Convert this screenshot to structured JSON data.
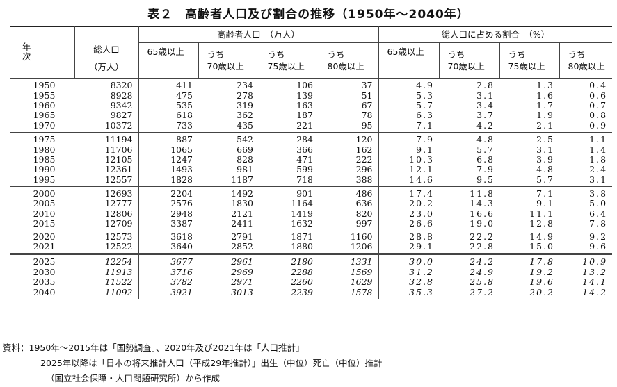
{
  "title": "表２　高齢者人口及び割合の推移（1950年～2040年）",
  "header": {
    "year": "年　次",
    "total_line1": "総人口",
    "total_line2": "（万人）",
    "group_pop": "高齢者人口　（万人）",
    "group_ratio": "総人口に占める割合　（%）",
    "pop_cols": [
      {
        "l1": "65歳以上",
        "l2": ""
      },
      {
        "l1": "うち",
        "l2": "70歳以上"
      },
      {
        "l1": "うち",
        "l2": "75歳以上"
      },
      {
        "l1": "うち",
        "l2": "80歳以上"
      }
    ],
    "ratio_cols": [
      {
        "l1": "65歳以上",
        "l2": ""
      },
      {
        "l1": "うち",
        "l2": "70歳以上"
      },
      {
        "l1": "うち",
        "l2": "75歳以上"
      },
      {
        "l1": "うち",
        "l2": "80歳以上"
      }
    ]
  },
  "blocks": [
    {
      "projected": false,
      "rows": [
        {
          "year": "1950",
          "total": "8320",
          "p65": "411",
          "p70": "234",
          "p75": "106",
          "p80": "37",
          "r65": "4.9",
          "r70": "2.8",
          "r75": "1.3",
          "r80": "0.4"
        },
        {
          "year": "1955",
          "total": "8928",
          "p65": "475",
          "p70": "278",
          "p75": "139",
          "p80": "51",
          "r65": "5.3",
          "r70": "3.1",
          "r75": "1.6",
          "r80": "0.6"
        },
        {
          "year": "1960",
          "total": "9342",
          "p65": "535",
          "p70": "319",
          "p75": "163",
          "p80": "67",
          "r65": "5.7",
          "r70": "3.4",
          "r75": "1.7",
          "r80": "0.7"
        },
        {
          "year": "1965",
          "total": "9827",
          "p65": "618",
          "p70": "362",
          "p75": "187",
          "p80": "78",
          "r65": "6.3",
          "r70": "3.7",
          "r75": "1.9",
          "r80": "0.8"
        },
        {
          "year": "1970",
          "total": "10372",
          "p65": "733",
          "p70": "435",
          "p75": "221",
          "p80": "95",
          "r65": "7.1",
          "r70": "4.2",
          "r75": "2.1",
          "r80": "0.9"
        }
      ]
    },
    {
      "projected": false,
      "rows": [
        {
          "year": "1975",
          "total": "11194",
          "p65": "887",
          "p70": "542",
          "p75": "284",
          "p80": "120",
          "r65": "7.9",
          "r70": "4.8",
          "r75": "2.5",
          "r80": "1.1"
        },
        {
          "year": "1980",
          "total": "11706",
          "p65": "1065",
          "p70": "669",
          "p75": "366",
          "p80": "162",
          "r65": "9.1",
          "r70": "5.7",
          "r75": "3.1",
          "r80": "1.4"
        },
        {
          "year": "1985",
          "total": "12105",
          "p65": "1247",
          "p70": "828",
          "p75": "471",
          "p80": "222",
          "r65": "10.3",
          "r70": "6.8",
          "r75": "3.9",
          "r80": "1.8"
        },
        {
          "year": "1990",
          "total": "12361",
          "p65": "1493",
          "p70": "981",
          "p75": "599",
          "p80": "296",
          "r65": "12.1",
          "r70": "7.9",
          "r75": "4.8",
          "r80": "2.4"
        },
        {
          "year": "1995",
          "total": "12557",
          "p65": "1828",
          "p70": "1187",
          "p75": "718",
          "p80": "388",
          "r65": "14.6",
          "r70": "9.5",
          "r75": "5.7",
          "r80": "3.1"
        }
      ]
    },
    {
      "projected": false,
      "rows": [
        {
          "year": "2000",
          "total": "12693",
          "p65": "2204",
          "p70": "1492",
          "p75": "901",
          "p80": "486",
          "r65": "17.4",
          "r70": "11.8",
          "r75": "7.1",
          "r80": "3.8"
        },
        {
          "year": "2005",
          "total": "12777",
          "p65": "2576",
          "p70": "1830",
          "p75": "1164",
          "p80": "636",
          "r65": "20.2",
          "r70": "14.3",
          "r75": "9.1",
          "r80": "5.0"
        },
        {
          "year": "2010",
          "total": "12806",
          "p65": "2948",
          "p70": "2121",
          "p75": "1419",
          "p80": "820",
          "r65": "23.0",
          "r70": "16.6",
          "r75": "11.1",
          "r80": "6.4"
        },
        {
          "year": "2015",
          "total": "12709",
          "p65": "3387",
          "p70": "2411",
          "p75": "1632",
          "p80": "997",
          "r65": "26.6",
          "r70": "19.0",
          "r75": "12.8",
          "r80": "7.8"
        },
        {
          "year": "2020",
          "total": "12573",
          "p65": "3618",
          "p70": "2791",
          "p75": "1871",
          "p80": "1160",
          "r65": "28.8",
          "r70": "22.2",
          "r75": "14.9",
          "r80": "9.2"
        },
        {
          "year": "2021",
          "total": "12522",
          "p65": "3640",
          "p70": "2852",
          "p75": "1880",
          "p80": "1206",
          "r65": "29.1",
          "r70": "22.8",
          "r75": "15.0",
          "r80": "9.6"
        }
      ]
    },
    {
      "projected": true,
      "rows": [
        {
          "year": "2025",
          "total": "12254",
          "p65": "3677",
          "p70": "2961",
          "p75": "2180",
          "p80": "1331",
          "r65": "30.0",
          "r70": "24.2",
          "r75": "17.8",
          "r80": "10.9"
        },
        {
          "year": "2030",
          "total": "11913",
          "p65": "3716",
          "p70": "2969",
          "p75": "2288",
          "p80": "1569",
          "r65": "31.2",
          "r70": "24.9",
          "r75": "19.2",
          "r80": "13.2"
        },
        {
          "year": "2035",
          "total": "11522",
          "p65": "3782",
          "p70": "2971",
          "p75": "2260",
          "p80": "1629",
          "r65": "32.8",
          "r70": "25.8",
          "r75": "19.6",
          "r80": "14.1"
        },
        {
          "year": "2040",
          "total": "11092",
          "p65": "3921",
          "p70": "3013",
          "p75": "2239",
          "p80": "1578",
          "r65": "35.3",
          "r70": "27.2",
          "r75": "20.2",
          "r80": "14.2"
        }
      ]
    }
  ],
  "notes": [
    "資料：1950年～2015年は「国勢調査」、2020年及び2021年は「人口推計」",
    "2025年以降は「日本の将来推計人口（平成29年推計）」出生（中位）死亡（中位）推計",
    "（国立社会保障・人口問題研究所）から作成"
  ]
}
